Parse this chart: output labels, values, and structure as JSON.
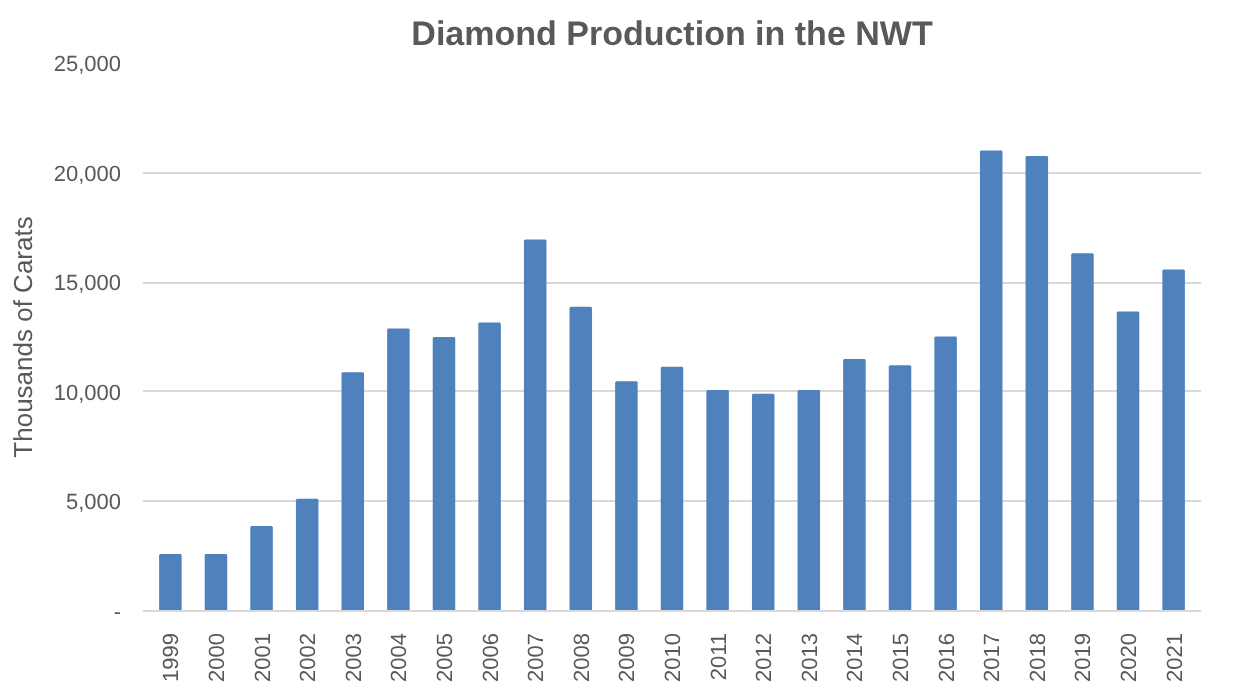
{
  "chart_data": {
    "type": "bar",
    "title": "Diamond Production in the NWT",
    "ylabel": "Thousands of Carats",
    "categories": [
      "1999",
      "2000",
      "2001",
      "2002",
      "2003",
      "2004",
      "2005",
      "2006",
      "2007",
      "2008",
      "2009",
      "2010",
      "2011",
      "2012",
      "2013",
      "2014",
      "2015",
      "2016",
      "2017",
      "2018",
      "2019",
      "2020",
      "2021"
    ],
    "values": [
      2550,
      2550,
      3830,
      5070,
      10850,
      12840,
      12450,
      13120,
      16900,
      13830,
      10430,
      11100,
      10040,
      9860,
      10040,
      11450,
      11170,
      12480,
      20960,
      20710,
      16280,
      13620,
      15530
    ],
    "color": "#4f81bd",
    "ylim": [
      0,
      25000
    ],
    "yticks": [
      {
        "value": 0,
        "label": "-"
      },
      {
        "value": 5000,
        "label": "5,000"
      },
      {
        "value": 10000,
        "label": "10,000"
      },
      {
        "value": 15000,
        "label": "15,000"
      },
      {
        "value": 20000,
        "label": "20,000"
      },
      {
        "value": 25000,
        "label": "25,000"
      }
    ],
    "grid": "y"
  }
}
